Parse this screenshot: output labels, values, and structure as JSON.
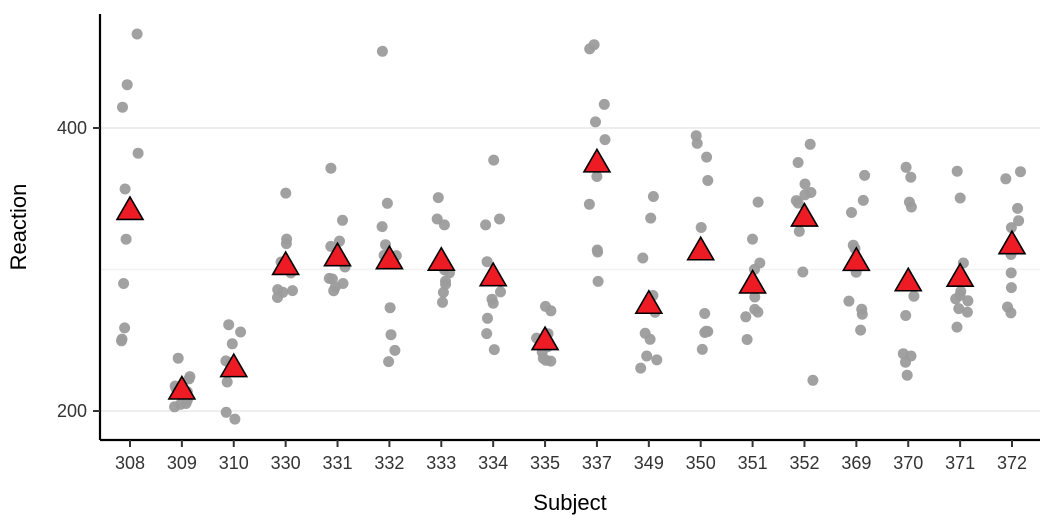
{
  "chart_data": {
    "type": "scatter",
    "title": "",
    "xlabel": "Subject",
    "ylabel": "Reaction",
    "ylim": [
      180,
      480
    ],
    "yticks": [
      200,
      400
    ],
    "grid_major": [
      200,
      400
    ],
    "grid_minor": [
      300
    ],
    "legend": "none",
    "background": "#ffffff",
    "grid_major_color": "#e8e8e8",
    "grid_minor_color": "#f2f2f2",
    "axis_color": "#000000",
    "point_color": "#9c9c9c",
    "mean_marker": {
      "shape": "triangle-up",
      "fill": "#ed1c24",
      "stroke": "#000000"
    },
    "categories": [
      "308",
      "309",
      "310",
      "330",
      "331",
      "332",
      "333",
      "334",
      "335",
      "337",
      "349",
      "350",
      "351",
      "352",
      "369",
      "370",
      "371",
      "372"
    ],
    "series": [
      {
        "subject": "308",
        "mean": 342.1,
        "values": [
          249.6,
          258.7,
          250.8,
          321.4,
          356.9,
          414.7,
          382.2,
          290.1,
          430.6,
          466.4
        ]
      },
      {
        "subject": "309",
        "mean": 215.2,
        "values": [
          222.7,
          205.3,
          203.0,
          204.7,
          207.7,
          216.0,
          213.6,
          217.7,
          224.3,
          237.3
        ]
      },
      {
        "subject": "310",
        "mean": 231.0,
        "values": [
          199.1,
          194.3,
          234.3,
          232.8,
          229.3,
          220.5,
          235.4,
          255.8,
          261.0,
          247.5
        ]
      },
      {
        "subject": "330",
        "mean": 303.2,
        "values": [
          321.5,
          300.4,
          283.9,
          285.1,
          285.8,
          297.6,
          280.2,
          318.3,
          305.3,
          354.0
        ]
      },
      {
        "subject": "331",
        "mean": 309.4,
        "values": [
          287.6,
          285.0,
          301.8,
          320.1,
          316.3,
          293.3,
          290.1,
          334.8,
          293.7,
          371.6
        ]
      },
      {
        "subject": "332",
        "mean": 307.3,
        "values": [
          234.9,
          242.8,
          273.0,
          309.8,
          317.5,
          310.0,
          454.2,
          346.8,
          330.3,
          253.9
        ]
      },
      {
        "subject": "333",
        "mean": 306.2,
        "values": [
          283.8,
          289.6,
          276.8,
          299.8,
          297.6,
          331.5,
          335.7,
          291.8,
          304.6,
          350.8
        ]
      },
      {
        "subject": "334",
        "mean": 295.3,
        "values": [
          265.5,
          276.2,
          243.4,
          254.7,
          279.0,
          284.2,
          305.5,
          331.5,
          335.7,
          377.3
        ]
      },
      {
        "subject": "335",
        "mean": 250.1,
        "values": [
          241.6,
          273.9,
          254.5,
          270.8,
          251.5,
          254.6,
          245.5,
          235.3,
          235.8,
          237.2
        ]
      },
      {
        "subject": "337",
        "mean": 375.7,
        "values": [
          312.4,
          313.8,
          291.6,
          346.1,
          365.7,
          391.8,
          404.3,
          416.7,
          455.9,
          458.9
        ]
      },
      {
        "subject": "349",
        "mean": 275.8,
        "values": [
          236.1,
          230.3,
          238.9,
          254.9,
          250.7,
          269.8,
          281.6,
          308.1,
          336.3,
          351.6
        ]
      },
      {
        "subject": "350",
        "mean": 313.6,
        "values": [
          256.3,
          243.5,
          256.2,
          255.5,
          268.9,
          329.7,
          379.4,
          362.9,
          394.5,
          389.1
        ]
      },
      {
        "subject": "351",
        "mean": 290.1,
        "values": [
          250.5,
          300.1,
          269.9,
          280.6,
          271.8,
          304.6,
          287.7,
          266.6,
          321.5,
          347.6
        ]
      },
      {
        "subject": "352",
        "mean": 337.4,
        "values": [
          221.7,
          298.2,
          326.9,
          346.9,
          348.7,
          352.8,
          354.4,
          360.4,
          375.6,
          388.5
        ]
      },
      {
        "subject": "369",
        "mean": 306.1,
        "values": [
          271.9,
          268.4,
          257.2,
          277.7,
          314.8,
          317.2,
          298.1,
          348.8,
          340.3,
          366.5
        ]
      },
      {
        "subject": "370",
        "mean": 291.7,
        "values": [
          225.3,
          234.5,
          238.9,
          240.5,
          267.5,
          344.2,
          281.1,
          347.6,
          365.2,
          372.2
        ]
      },
      {
        "subject": "371",
        "mean": 294.9,
        "values": [
          269.9,
          272.4,
          277.9,
          281.8,
          279.2,
          284.5,
          259.3,
          304.6,
          350.5,
          369.5
        ]
      },
      {
        "subject": "372",
        "mean": 317.9,
        "values": [
          269.4,
          273.5,
          297.6,
          310.6,
          287.2,
          329.6,
          334.5,
          343.2,
          369.1,
          364.1
        ]
      }
    ]
  }
}
